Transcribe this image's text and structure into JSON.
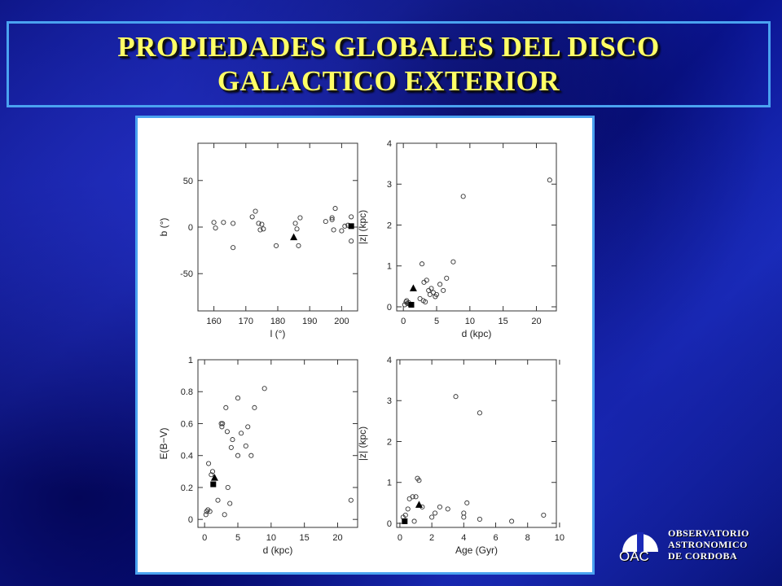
{
  "slide": {
    "title_line1": "PROPIEDADES GLOBALES DEL DISCO",
    "title_line2": "GALACTICO EXTERIOR"
  },
  "logo": {
    "abbr": "OAC",
    "line1": "OBSERVATORIO",
    "line2": "ASTRONOMICO",
    "line3": "DE CORDOBA"
  },
  "chart_data": [
    {
      "type": "scatter",
      "xlabel": "l (°)",
      "ylabel": "b (°)",
      "xlim": [
        155,
        205
      ],
      "ylim": [
        -90,
        90
      ],
      "xticks": [
        160,
        170,
        180,
        190,
        200
      ],
      "yticks": [
        -50,
        0,
        50
      ],
      "series": [
        {
          "marker": "circle",
          "x": [
            160,
            160.5,
            163,
            166,
            166,
            172,
            173,
            174,
            174.5,
            175,
            175.5,
            179.5,
            185.5,
            186,
            186.5,
            187,
            195,
            197,
            197.5,
            197,
            198,
            200,
            201,
            202,
            203,
            203
          ],
          "y": [
            5,
            -1,
            5,
            4,
            -22,
            11,
            17,
            4,
            -3,
            3,
            -2,
            -20,
            4,
            -2,
            -20,
            10,
            6,
            8,
            -3,
            10,
            20,
            -4,
            1,
            2,
            11,
            -15
          ]
        },
        {
          "marker": "triangle",
          "x": [
            185
          ],
          "y": [
            -11
          ]
        },
        {
          "marker": "square",
          "x": [
            203
          ],
          "y": [
            1
          ]
        }
      ]
    },
    {
      "type": "scatter",
      "xlabel": "d (kpc)",
      "ylabel": "|z| (kpc)",
      "xlim": [
        -1,
        23
      ],
      "ylim": [
        -0.1,
        4
      ],
      "xticks": [
        0,
        5,
        10,
        15,
        20
      ],
      "yticks": [
        0,
        1,
        2,
        3,
        4
      ],
      "series": [
        {
          "marker": "circle",
          "x": [
            0.2,
            0.4,
            0.5,
            0.6,
            0.8,
            1.0,
            2.5,
            2.8,
            3.0,
            3.1,
            3.3,
            3.5,
            3.8,
            4.0,
            4.2,
            4.5,
            4.8,
            5.0,
            5.5,
            6.0,
            6.5,
            7.5,
            9.0,
            22.0
          ],
          "y": [
            0.05,
            0.12,
            0.15,
            0.08,
            0.1,
            0.05,
            0.2,
            1.05,
            0.15,
            0.6,
            0.12,
            0.65,
            0.4,
            0.3,
            0.45,
            0.35,
            0.25,
            0.3,
            0.55,
            0.4,
            0.7,
            1.1,
            2.7,
            3.1
          ]
        },
        {
          "marker": "triangle",
          "x": [
            1.5
          ],
          "y": [
            0.45
          ]
        },
        {
          "marker": "square",
          "x": [
            1.2
          ],
          "y": [
            0.05
          ]
        }
      ]
    },
    {
      "type": "scatter",
      "xlabel": "d (kpc)",
      "ylabel": "E(B−V)",
      "xlim": [
        -1,
        23
      ],
      "ylim": [
        -0.05,
        1
      ],
      "xticks": [
        0,
        5,
        10,
        15,
        20
      ],
      "yticks": [
        0,
        0.2,
        0.4,
        0.6,
        0.8,
        1
      ],
      "series": [
        {
          "marker": "circle",
          "x": [
            0.2,
            0.3,
            0.5,
            0.6,
            0.8,
            1.0,
            1.2,
            2.0,
            2.5,
            2.6,
            2.7,
            3.0,
            3.2,
            3.4,
            3.5,
            3.8,
            4.0,
            4.2,
            5.0,
            5.0,
            5.5,
            6.2,
            6.5,
            7.0,
            7.5,
            9.0,
            22.0
          ],
          "y": [
            0.03,
            0.05,
            0.06,
            0.35,
            0.05,
            0.28,
            0.3,
            0.12,
            0.6,
            0.58,
            0.6,
            0.03,
            0.7,
            0.55,
            0.2,
            0.1,
            0.45,
            0.5,
            0.4,
            0.76,
            0.54,
            0.46,
            0.58,
            0.4,
            0.7,
            0.82,
            0.12
          ]
        },
        {
          "marker": "triangle",
          "x": [
            1.5
          ],
          "y": [
            0.26
          ]
        },
        {
          "marker": "square",
          "x": [
            1.3
          ],
          "y": [
            0.22
          ]
        }
      ]
    },
    {
      "type": "scatter",
      "xlabel": "Age (Gyr)",
      "ylabel": "|z| (kpc)",
      "xlim": [
        -0.2,
        9.8
      ],
      "ylim": [
        -0.1,
        4
      ],
      "xticks": [
        0,
        2,
        4,
        6,
        8,
        10
      ],
      "yticks": [
        0,
        1,
        2,
        3,
        4
      ],
      "series": [
        {
          "marker": "circle",
          "x": [
            0.2,
            0.3,
            0.35,
            0.5,
            0.6,
            0.8,
            0.9,
            1.0,
            1.1,
            1.2,
            1.4,
            2.0,
            2.2,
            2.5,
            3.0,
            3.5,
            4.0,
            4.0,
            4.2,
            5.0,
            5.0,
            7.0,
            9.0
          ],
          "y": [
            0.15,
            0.05,
            0.2,
            0.35,
            0.6,
            0.65,
            0.05,
            0.65,
            1.1,
            1.05,
            0.4,
            0.15,
            0.25,
            0.4,
            0.35,
            3.1,
            0.25,
            0.15,
            0.5,
            2.7,
            0.1,
            0.05,
            0.2
          ]
        },
        {
          "marker": "triangle",
          "x": [
            1.2
          ],
          "y": [
            0.45
          ]
        },
        {
          "marker": "square",
          "x": [
            0.3
          ],
          "y": [
            0.05
          ]
        }
      ]
    }
  ]
}
